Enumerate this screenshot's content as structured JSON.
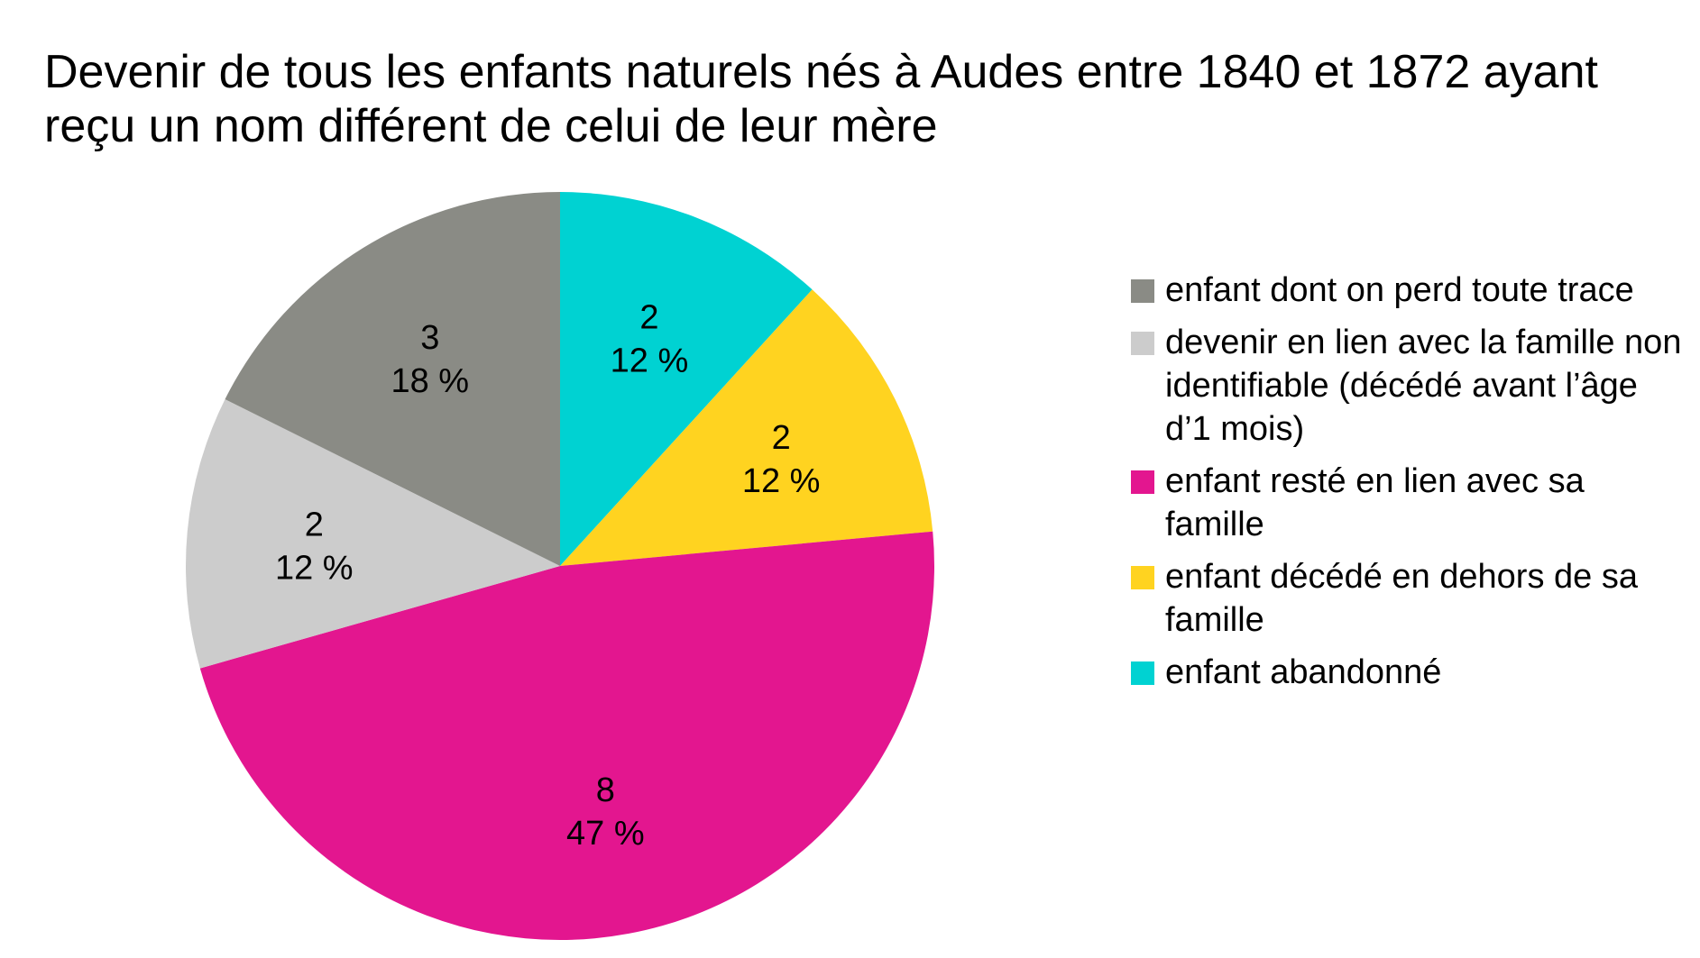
{
  "chart_data": {
    "type": "pie",
    "title": "Devenir de tous les enfants naturels nés à Audes entre 1840 et 1872 ayant\nreçu un nom différent de celui de leur mère",
    "slices": [
      {
        "label": "enfant abandonné",
        "value": 2,
        "percent_label": "12 %",
        "color": "#00d2d2"
      },
      {
        "label": "enfant décédé en dehors de sa famille",
        "value": 2,
        "percent_label": "12 %",
        "color": "#ffd320"
      },
      {
        "label": "enfant resté en lien avec sa famille",
        "value": 8,
        "percent_label": "47 %",
        "color": "#e3168f"
      },
      {
        "label": "devenir en lien avec la famille non identifiable (décédé avant l’âge d’1 mois)",
        "value": 2,
        "percent_label": "12 %",
        "color": "#cccccc"
      },
      {
        "label": "enfant dont on perd toute trace",
        "value": 3,
        "percent_label": "18 %",
        "color": "#8a8b85"
      }
    ],
    "legend": [
      {
        "label": "enfant dont on perd toute trace",
        "color": "#8a8b85"
      },
      {
        "label": "devenir en lien avec la famille non identifiable (décédé avant l’âge d’1 mois)",
        "color": "#cccccc"
      },
      {
        "label": "enfant resté en lien avec sa famille",
        "color": "#e3168f"
      },
      {
        "label": "enfant décédé en dehors de sa famille",
        "color": "#ffd320"
      },
      {
        "label": "enfant abandonné",
        "color": "#00d2d2"
      }
    ],
    "legend_position": "right"
  }
}
